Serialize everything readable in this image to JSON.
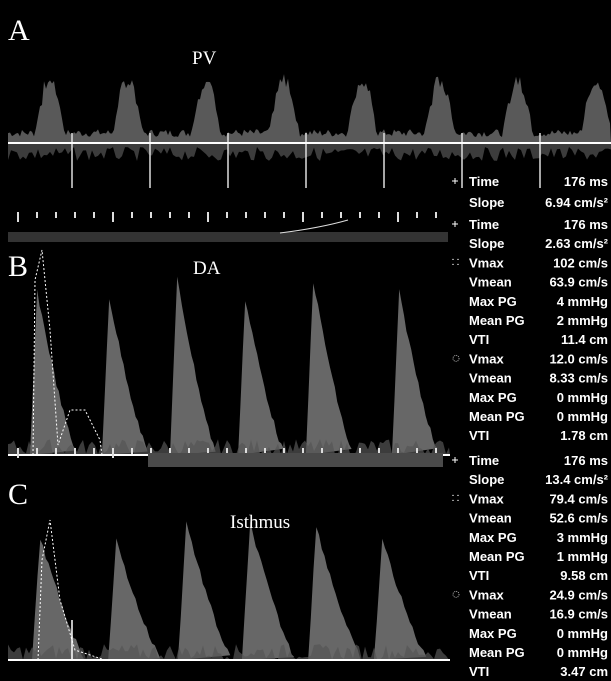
{
  "panels": [
    {
      "label": "A",
      "title": "PV"
    },
    {
      "label": "B",
      "title": "DA"
    },
    {
      "label": "C",
      "title": "Isthmus"
    }
  ],
  "measurements": [
    {
      "rows": [
        {
          "label": "Time",
          "value": "176 ms"
        },
        {
          "label": "Slope",
          "value": "6.94 cm/s²"
        }
      ]
    },
    {
      "rows": [
        {
          "label": "Time",
          "value": "176 ms"
        },
        {
          "label": "Slope",
          "value": "2.63 cm/s²"
        },
        {
          "label": "Vmax",
          "value": "102 cm/s"
        },
        {
          "label": "Vmean",
          "value": "63.9 cm/s"
        },
        {
          "label": "Max PG",
          "value": "4 mmHg"
        },
        {
          "label": "Mean PG",
          "value": "2 mmHg"
        },
        {
          "label": "VTI",
          "value": "11.4 cm"
        },
        {
          "label": "Vmax",
          "value": "12.0 cm/s"
        },
        {
          "label": "Vmean",
          "value": "8.33 cm/s"
        },
        {
          "label": "Max PG",
          "value": "0 mmHg"
        },
        {
          "label": "Mean PG",
          "value": "0 mmHg"
        },
        {
          "label": "VTI",
          "value": "1.78 cm"
        }
      ]
    },
    {
      "rows": [
        {
          "label": "Time",
          "value": "176 ms"
        },
        {
          "label": "Slope",
          "value": "13.4 cm/s²"
        },
        {
          "label": "Vmax",
          "value": "79.4 cm/s"
        },
        {
          "label": "Vmean",
          "value": "52.6 cm/s"
        },
        {
          "label": "Max PG",
          "value": "3 mmHg"
        },
        {
          "label": "Mean PG",
          "value": "1 mmHg"
        },
        {
          "label": "VTI",
          "value": "9.58 cm"
        },
        {
          "label": "Vmax",
          "value": "24.9 cm/s"
        },
        {
          "label": "Vmean",
          "value": "16.9 cm/s"
        },
        {
          "label": "Max PG",
          "value": "0 mmHg"
        },
        {
          "label": "Mean PG",
          "value": "0 mmHg"
        },
        {
          "label": "VTI",
          "value": "3.47 cm"
        }
      ]
    }
  ]
}
